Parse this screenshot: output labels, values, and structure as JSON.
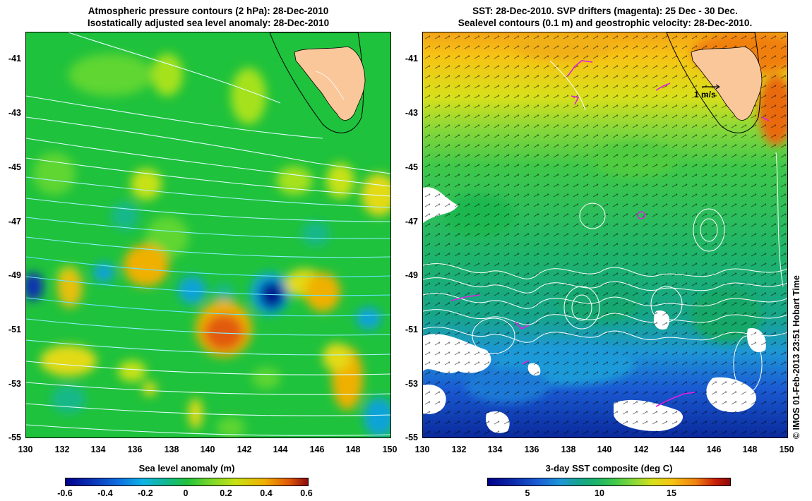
{
  "left_panel": {
    "title_line1": "Atmospheric pressure contours (2 hPa): 28-Dec-2010",
    "title_line2": "Isostatically adjusted sea level anomaly: 28-Dec-2010",
    "colorbar_label": "Sea level anomaly (m)",
    "colorbar_ticks": [
      "-0.6",
      "-0.4",
      "-0.2",
      "0",
      "0.2",
      "0.4",
      "0.6"
    ],
    "colors": {
      "ocean": "#1fc23c",
      "land": "#f9c79a"
    }
  },
  "right_panel": {
    "title_line1": "SST: 28-Dec-2010. SVP drifters (magenta): 25 Dec - 30 Dec.",
    "title_line2": "Sealevel contours (0.1 m) and geostrophic velocity: 28-Dec-2010.",
    "colorbar_label": "3-day SST composite (deg C)",
    "colorbar_ticks": [
      "5",
      "10",
      "15"
    ],
    "scale_label": "1 m/s",
    "colors": {
      "land": "#f9c79a",
      "drifter": "#e020e0"
    }
  },
  "y_ticks": [
    "-41",
    "-43",
    "-45",
    "-47",
    "-49",
    "-51",
    "-53",
    "-55"
  ],
  "x_ticks": [
    "130",
    "132",
    "134",
    "136",
    "138",
    "140",
    "142",
    "144",
    "146",
    "148",
    "150"
  ],
  "credit": "© IMOS 01-Feb-2013 23:51 Hobart Time"
}
